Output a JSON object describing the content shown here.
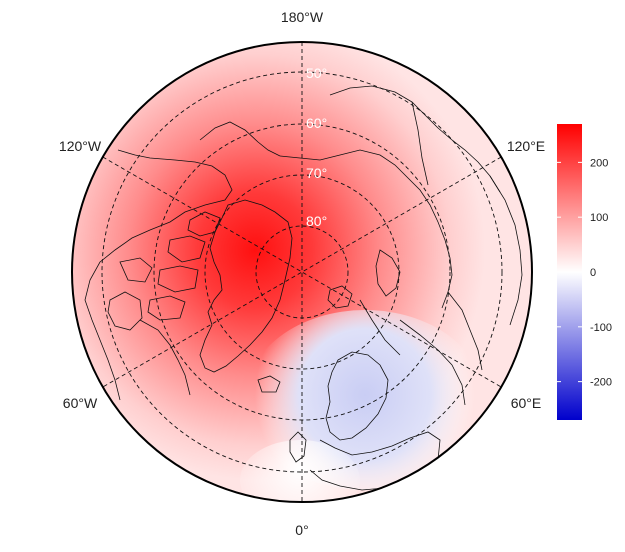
{
  "map": {
    "projection": "north polar stereographic",
    "center": "North Pole",
    "outer_latitude": 40,
    "lon_labels": [
      {
        "text": "180°W",
        "position": "top"
      },
      {
        "text": "120°W",
        "position": "upper-left"
      },
      {
        "text": "120°E",
        "position": "upper-right"
      },
      {
        "text": "60°W",
        "position": "lower-left"
      },
      {
        "text": "60°E",
        "position": "lower-right"
      },
      {
        "text": "0°",
        "position": "bottom"
      }
    ],
    "lat_labels": [
      "50°",
      "60°",
      "70°",
      "80°"
    ],
    "field_description_colors": {
      "positive": "#ff0000",
      "zero": "#ffffff",
      "negative": "#0000cc"
    }
  },
  "legend": {
    "position": "right",
    "min": -270,
    "max": 270,
    "ticks": [
      "200",
      "100",
      "0",
      "-100",
      "-200"
    ],
    "tick_values": [
      200,
      100,
      0,
      -100,
      -200
    ],
    "colors": [
      "#ff0000",
      "#ffffff",
      "#0000cc"
    ]
  }
}
